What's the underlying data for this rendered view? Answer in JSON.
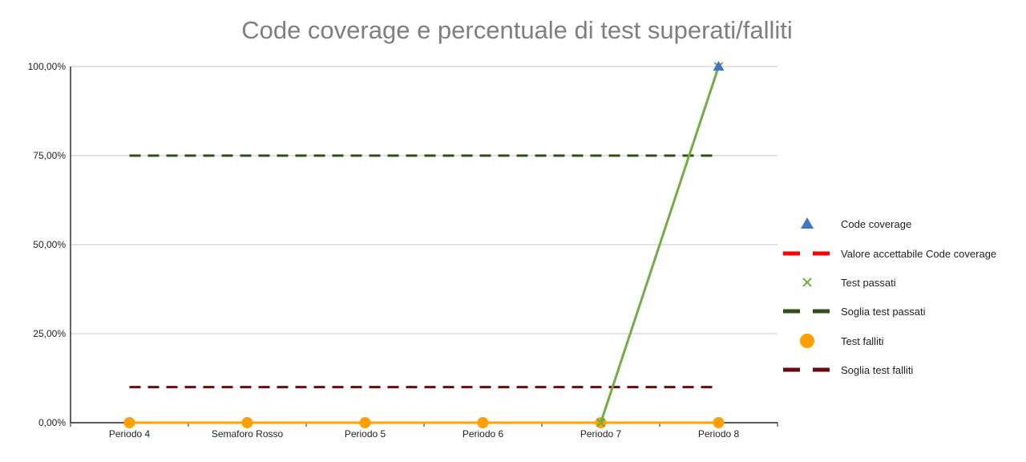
{
  "chart_data": {
    "type": "line",
    "title": "Code coverage e percentuale di test superati/falliti",
    "categories": [
      "Periodo 4",
      "Semaforo Rosso",
      "Periodo 5",
      "Periodo 6",
      "Periodo 7",
      "Periodo 8"
    ],
    "ylim": [
      0,
      100
    ],
    "yticks": [
      "0,00%",
      "25,00%",
      "50,00%",
      "75,00%",
      "100,00%"
    ],
    "grid": true,
    "legend_position": "right",
    "series": [
      {
        "name": "Code coverage",
        "values": [
          null,
          null,
          null,
          null,
          null,
          100
        ],
        "color": "#4472c4",
        "marker": "triangle",
        "line": "none"
      },
      {
        "name": "Valore accettabile Code coverage",
        "values": [
          null,
          null,
          null,
          null,
          null,
          null
        ],
        "color": "#ff0000",
        "marker": "none",
        "line": "dashed"
      },
      {
        "name": "Test passati",
        "values": [
          null,
          null,
          null,
          null,
          0,
          100
        ],
        "color": "#70ad47",
        "marker": "x",
        "line": "solid"
      },
      {
        "name": "Soglia test passati",
        "values": [
          75,
          75,
          75,
          75,
          75,
          75
        ],
        "color": "#2e4f1a",
        "marker": "none",
        "line": "dashed"
      },
      {
        "name": "Test falliti",
        "values": [
          0,
          0,
          0,
          0,
          0,
          0
        ],
        "color": "#ffa000",
        "marker": "circle",
        "line": "solid"
      },
      {
        "name": "Soglia test falliti",
        "values": [
          10,
          10,
          10,
          10,
          10,
          10
        ],
        "color": "#6b0a0a",
        "marker": "none",
        "line": "dashed"
      }
    ]
  }
}
